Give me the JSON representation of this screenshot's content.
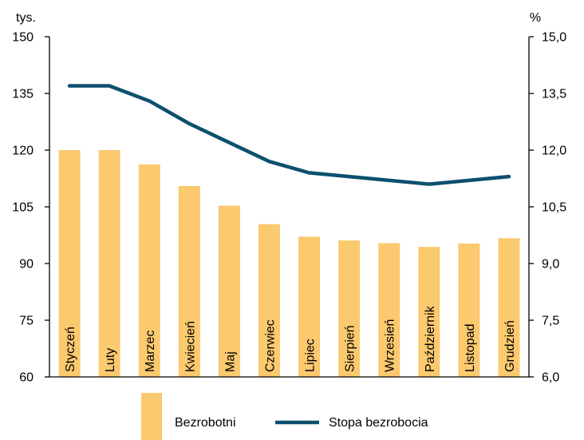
{
  "chart_data": {
    "type": "bar",
    "left_unit": "tys.",
    "right_unit": "%",
    "categories": [
      "Styczeń",
      "Luty",
      "Marzec",
      "Kwiecień",
      "Maj",
      "Czerwiec",
      "Lipiec",
      "Sierpień",
      "Wrzesień",
      "Październik",
      "Listopad",
      "Grudzień"
    ],
    "series": [
      {
        "name": "Bezrobotni",
        "type": "bar",
        "axis": "left",
        "color": "#FBC96E",
        "values": [
          120,
          120,
          116.2,
          110.5,
          105.3,
          100.4,
          97.1,
          96.1,
          95.4,
          94.4,
          95.3,
          96.7
        ]
      },
      {
        "name": "Stopa bezrobocia",
        "type": "line",
        "axis": "right",
        "color": "#0D4F6E",
        "values": [
          13.7,
          13.7,
          13.3,
          12.7,
          12.2,
          11.7,
          11.4,
          11.3,
          11.2,
          11.1,
          11.2,
          11.3
        ]
      }
    ],
    "y_left": {
      "min": 60,
      "max": 150,
      "ticks": [
        "60",
        "75",
        "90",
        "105",
        "120",
        "135",
        "150"
      ]
    },
    "y_right": {
      "min": 6.0,
      "max": 15.0,
      "ticks": [
        "6,0",
        "7,5",
        "9,0",
        "10,5",
        "12,0",
        "13,5",
        "15,0"
      ]
    },
    "grid": false,
    "legend_position": "bottom"
  }
}
